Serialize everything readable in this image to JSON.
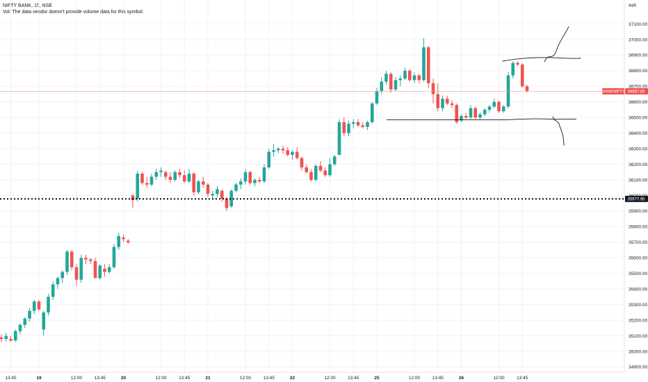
{
  "header": {
    "symbol_line": "NIFTY BANK, 15, NSE",
    "vol_line": "Vol: The data vendor doesn't provide volume data for this symbol."
  },
  "chart_data": {
    "type": "candlestick",
    "currency": "INR",
    "ylim": [
      34850,
      37250
    ],
    "yticks": [
      34900,
      35000,
      35100,
      35200,
      35300,
      35400,
      35500,
      35600,
      35700,
      35800,
      35900,
      36000,
      36100,
      36200,
      36300,
      36400,
      36500,
      36600,
      36700,
      36800,
      36900,
      37000,
      37100
    ],
    "xlabels": [
      {
        "i": 2,
        "label": "13:45",
        "day": false
      },
      {
        "i": 8,
        "label": "19",
        "day": true
      },
      {
        "i": 16,
        "label": "12:00",
        "day": false
      },
      {
        "i": 21,
        "label": "13:45",
        "day": false
      },
      {
        "i": 26,
        "label": "20",
        "day": true
      },
      {
        "i": 34,
        "label": "12:00",
        "day": false
      },
      {
        "i": 39,
        "label": "13:45",
        "day": false
      },
      {
        "i": 44,
        "label": "21",
        "day": true
      },
      {
        "i": 52,
        "label": "12:00",
        "day": false
      },
      {
        "i": 57,
        "label": "13:45",
        "day": false
      },
      {
        "i": 62,
        "label": "22",
        "day": true
      },
      {
        "i": 70,
        "label": "12:00",
        "day": false
      },
      {
        "i": 75,
        "label": "13:45",
        "day": false
      },
      {
        "i": 80,
        "label": "25",
        "day": true
      },
      {
        "i": 88,
        "label": "12:00",
        "day": false
      },
      {
        "i": 93,
        "label": "13:45",
        "day": false
      },
      {
        "i": 98,
        "label": "26",
        "day": true
      },
      {
        "i": 106,
        "label": "12:00",
        "day": false
      },
      {
        "i": 111,
        "label": "13:45",
        "day": false
      }
    ],
    "candles": [
      {
        "o": 35090,
        "h": 35110,
        "l": 35060,
        "c": 35080
      },
      {
        "o": 35080,
        "h": 35120,
        "l": 35060,
        "c": 35100
      },
      {
        "o": 35080,
        "h": 35100,
        "l": 35060,
        "c": 35070
      },
      {
        "o": 35070,
        "h": 35140,
        "l": 35060,
        "c": 35130
      },
      {
        "o": 35130,
        "h": 35180,
        "l": 35110,
        "c": 35170
      },
      {
        "o": 35170,
        "h": 35220,
        "l": 35150,
        "c": 35210
      },
      {
        "o": 35210,
        "h": 35280,
        "l": 35190,
        "c": 35260
      },
      {
        "o": 35260,
        "h": 35330,
        "l": 35240,
        "c": 35320
      },
      {
        "o": 35320,
        "h": 35330,
        "l": 35260,
        "c": 35270
      },
      {
        "o": 35140,
        "h": 35260,
        "l": 35100,
        "c": 35250
      },
      {
        "o": 35250,
        "h": 35370,
        "l": 35230,
        "c": 35350
      },
      {
        "o": 35350,
        "h": 35450,
        "l": 35330,
        "c": 35430
      },
      {
        "o": 35430,
        "h": 35480,
        "l": 35400,
        "c": 35470
      },
      {
        "o": 35470,
        "h": 35520,
        "l": 35440,
        "c": 35510
      },
      {
        "o": 35510,
        "h": 35650,
        "l": 35490,
        "c": 35640
      },
      {
        "o": 35640,
        "h": 35650,
        "l": 35520,
        "c": 35540
      },
      {
        "o": 35540,
        "h": 35560,
        "l": 35420,
        "c": 35460
      },
      {
        "o": 35460,
        "h": 35620,
        "l": 35440,
        "c": 35600
      },
      {
        "o": 35600,
        "h": 35620,
        "l": 35560,
        "c": 35590
      },
      {
        "o": 35590,
        "h": 35600,
        "l": 35560,
        "c": 35580
      },
      {
        "o": 35580,
        "h": 35600,
        "l": 35470,
        "c": 35470
      },
      {
        "o": 35470,
        "h": 35560,
        "l": 35460,
        "c": 35550
      },
      {
        "o": 35530,
        "h": 35560,
        "l": 35480,
        "c": 35510
      },
      {
        "o": 35510,
        "h": 35560,
        "l": 35500,
        "c": 35540
      },
      {
        "o": 35540,
        "h": 35690,
        "l": 35530,
        "c": 35670
      },
      {
        "o": 35670,
        "h": 35760,
        "l": 35650,
        "c": 35740
      },
      {
        "o": 35730,
        "h": 35750,
        "l": 35700,
        "c": 35720
      },
      {
        "o": 35710,
        "h": 35720,
        "l": 35690,
        "c": 35700
      },
      {
        "o": 36000,
        "h": 36010,
        "l": 35920,
        "c": 35970
      },
      {
        "o": 35980,
        "h": 36160,
        "l": 35960,
        "c": 36140
      },
      {
        "o": 36140,
        "h": 36150,
        "l": 36070,
        "c": 36080
      },
      {
        "o": 36080,
        "h": 36120,
        "l": 36050,
        "c": 36070
      },
      {
        "o": 36070,
        "h": 36140,
        "l": 36060,
        "c": 36120
      },
      {
        "o": 36120,
        "h": 36170,
        "l": 36100,
        "c": 36150
      },
      {
        "o": 36150,
        "h": 36180,
        "l": 36120,
        "c": 36160
      },
      {
        "o": 36150,
        "h": 36160,
        "l": 36100,
        "c": 36120
      },
      {
        "o": 36120,
        "h": 36150,
        "l": 36080,
        "c": 36100
      },
      {
        "o": 36100,
        "h": 36160,
        "l": 36090,
        "c": 36150
      },
      {
        "o": 36150,
        "h": 36170,
        "l": 36110,
        "c": 36130
      },
      {
        "o": 36130,
        "h": 36160,
        "l": 36080,
        "c": 36090
      },
      {
        "o": 36090,
        "h": 36170,
        "l": 36080,
        "c": 36140
      },
      {
        "o": 36140,
        "h": 36150,
        "l": 36000,
        "c": 36020
      },
      {
        "o": 36020,
        "h": 36100,
        "l": 36010,
        "c": 36090
      },
      {
        "o": 36090,
        "h": 36120,
        "l": 36050,
        "c": 36070
      },
      {
        "o": 36070,
        "h": 36080,
        "l": 35990,
        "c": 36010
      },
      {
        "o": 36000,
        "h": 36030,
        "l": 35980,
        "c": 36010
      },
      {
        "o": 36010,
        "h": 36060,
        "l": 35990,
        "c": 36040
      },
      {
        "o": 36030,
        "h": 36040,
        "l": 35960,
        "c": 35980
      },
      {
        "o": 35980,
        "h": 35990,
        "l": 35900,
        "c": 35920
      },
      {
        "o": 35930,
        "h": 36040,
        "l": 35920,
        "c": 36030
      },
      {
        "o": 36030,
        "h": 36080,
        "l": 36020,
        "c": 36070
      },
      {
        "o": 36070,
        "h": 36110,
        "l": 36040,
        "c": 36090
      },
      {
        "o": 36090,
        "h": 36170,
        "l": 36070,
        "c": 36150
      },
      {
        "o": 36150,
        "h": 36160,
        "l": 36070,
        "c": 36080
      },
      {
        "o": 36080,
        "h": 36110,
        "l": 36060,
        "c": 36100
      },
      {
        "o": 36100,
        "h": 36120,
        "l": 36080,
        "c": 36090
      },
      {
        "o": 36090,
        "h": 36200,
        "l": 36080,
        "c": 36180
      },
      {
        "o": 36180,
        "h": 36300,
        "l": 36170,
        "c": 36280
      },
      {
        "o": 36280,
        "h": 36330,
        "l": 36250,
        "c": 36290
      },
      {
        "o": 36290,
        "h": 36310,
        "l": 36270,
        "c": 36300
      },
      {
        "o": 36300,
        "h": 36320,
        "l": 36270,
        "c": 36290
      },
      {
        "o": 36290,
        "h": 36310,
        "l": 36250,
        "c": 36260
      },
      {
        "o": 36260,
        "h": 36290,
        "l": 36230,
        "c": 36280
      },
      {
        "o": 36280,
        "h": 36310,
        "l": 36230,
        "c": 36240
      },
      {
        "o": 36240,
        "h": 36250,
        "l": 36160,
        "c": 36180
      },
      {
        "o": 36180,
        "h": 36200,
        "l": 36140,
        "c": 36150
      },
      {
        "o": 36150,
        "h": 36170,
        "l": 36090,
        "c": 36100
      },
      {
        "o": 36100,
        "h": 36200,
        "l": 36090,
        "c": 36190
      },
      {
        "o": 36190,
        "h": 36220,
        "l": 36150,
        "c": 36160
      },
      {
        "o": 36160,
        "h": 36180,
        "l": 36120,
        "c": 36130
      },
      {
        "o": 36130,
        "h": 36240,
        "l": 36120,
        "c": 36200
      },
      {
        "o": 36200,
        "h": 36260,
        "l": 36190,
        "c": 36250
      },
      {
        "o": 36260,
        "h": 36490,
        "l": 36260,
        "c": 36470
      },
      {
        "o": 36470,
        "h": 36500,
        "l": 36380,
        "c": 36400
      },
      {
        "o": 36400,
        "h": 36480,
        "l": 36380,
        "c": 36460
      },
      {
        "o": 36460,
        "h": 36490,
        "l": 36430,
        "c": 36470
      },
      {
        "o": 36470,
        "h": 36490,
        "l": 36440,
        "c": 36450
      },
      {
        "o": 36450,
        "h": 36470,
        "l": 36430,
        "c": 36440
      },
      {
        "o": 36440,
        "h": 36480,
        "l": 36420,
        "c": 36470
      },
      {
        "o": 36470,
        "h": 36600,
        "l": 36460,
        "c": 36590
      },
      {
        "o": 36590,
        "h": 36690,
        "l": 36580,
        "c": 36670
      },
      {
        "o": 36670,
        "h": 36760,
        "l": 36650,
        "c": 36730
      },
      {
        "o": 36730,
        "h": 36800,
        "l": 36710,
        "c": 36780
      },
      {
        "o": 36780,
        "h": 36790,
        "l": 36660,
        "c": 36680
      },
      {
        "o": 36680,
        "h": 36760,
        "l": 36670,
        "c": 36740
      },
      {
        "o": 36740,
        "h": 36770,
        "l": 36700,
        "c": 36750
      },
      {
        "o": 36750,
        "h": 36820,
        "l": 36740,
        "c": 36800
      },
      {
        "o": 36800,
        "h": 36810,
        "l": 36730,
        "c": 36740
      },
      {
        "o": 36740,
        "h": 36790,
        "l": 36720,
        "c": 36770
      },
      {
        "o": 36770,
        "h": 36780,
        "l": 36720,
        "c": 36740
      },
      {
        "o": 36740,
        "h": 37010,
        "l": 36730,
        "c": 36950
      },
      {
        "o": 36950,
        "h": 36960,
        "l": 36690,
        "c": 36720
      },
      {
        "o": 36720,
        "h": 36750,
        "l": 36590,
        "c": 36650
      },
      {
        "o": 36650,
        "h": 36720,
        "l": 36540,
        "c": 36560
      },
      {
        "o": 36560,
        "h": 36640,
        "l": 36540,
        "c": 36620
      },
      {
        "o": 36620,
        "h": 36640,
        "l": 36580,
        "c": 36590
      },
      {
        "o": 36590,
        "h": 36610,
        "l": 36560,
        "c": 36580
      },
      {
        "o": 36580,
        "h": 36590,
        "l": 36460,
        "c": 36470
      },
      {
        "o": 36480,
        "h": 36520,
        "l": 36470,
        "c": 36510
      },
      {
        "o": 36510,
        "h": 36530,
        "l": 36490,
        "c": 36500
      },
      {
        "o": 36500,
        "h": 36580,
        "l": 36490,
        "c": 36560
      },
      {
        "o": 36560,
        "h": 36570,
        "l": 36490,
        "c": 36500
      },
      {
        "o": 36500,
        "h": 36530,
        "l": 36490,
        "c": 36520
      },
      {
        "o": 36520,
        "h": 36560,
        "l": 36510,
        "c": 36550
      },
      {
        "o": 36550,
        "h": 36580,
        "l": 36530,
        "c": 36570
      },
      {
        "o": 36570,
        "h": 36620,
        "l": 36560,
        "c": 36600
      },
      {
        "o": 36600,
        "h": 36610,
        "l": 36530,
        "c": 36540
      },
      {
        "o": 36540,
        "h": 36580,
        "l": 36530,
        "c": 36570
      },
      {
        "o": 36570,
        "h": 36790,
        "l": 36560,
        "c": 36770
      },
      {
        "o": 36770,
        "h": 36860,
        "l": 36750,
        "c": 36850
      },
      {
        "o": 36850,
        "h": 36860,
        "l": 36830,
        "c": 36840
      },
      {
        "o": 36840,
        "h": 36850,
        "l": 36690,
        "c": 36700
      },
      {
        "o": 36700,
        "h": 36710,
        "l": 36660,
        "c": 36670
      }
    ],
    "last_price": {
      "symbol": "BANKNIFTY",
      "value": "36667.85",
      "y": 36667.85
    },
    "horizontal_level": {
      "value": "35977.95",
      "y": 35977.95
    },
    "drawings": {
      "top_line": {
        "y": 36883
      },
      "bottom_line": {
        "y": 36490
      }
    },
    "colors": {
      "up": "#26a69a",
      "down": "#ef5350",
      "axis_text": "#131722",
      "grid": "#f0f3fa",
      "drawing": "#131722"
    }
  }
}
